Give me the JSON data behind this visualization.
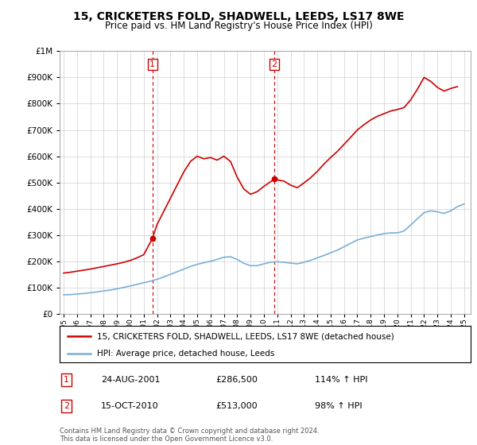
{
  "title": "15, CRICKETERS FOLD, SHADWELL, LEEDS, LS17 8WE",
  "subtitle": "Price paid vs. HM Land Registry's House Price Index (HPI)",
  "legend_line1": "15, CRICKETERS FOLD, SHADWELL, LEEDS, LS17 8WE (detached house)",
  "legend_line2": "HPI: Average price, detached house, Leeds",
  "annotation1_label": "1",
  "annotation1_date": "24-AUG-2001",
  "annotation1_price": "£286,500",
  "annotation1_hpi": "114% ↑ HPI",
  "annotation2_label": "2",
  "annotation2_date": "15-OCT-2010",
  "annotation2_price": "£513,000",
  "annotation2_hpi": "98% ↑ HPI",
  "footnote": "Contains HM Land Registry data © Crown copyright and database right 2024.\nThis data is licensed under the Open Government Licence v3.0.",
  "red_color": "#cc0000",
  "blue_color": "#7bafd4",
  "sale1_year": 2001.65,
  "sale1_price": 286500,
  "sale2_year": 2010.79,
  "sale2_price": 513000,
  "ylim": [
    0,
    1000000
  ],
  "xlim_start": 1994.7,
  "xlim_end": 2025.5,
  "hpi_years": [
    1995,
    1995.5,
    1996,
    1996.5,
    1997,
    1997.5,
    1998,
    1998.5,
    1999,
    1999.5,
    2000,
    2000.5,
    2001,
    2001.5,
    2002,
    2002.5,
    2003,
    2003.5,
    2004,
    2004.5,
    2005,
    2005.5,
    2006,
    2006.5,
    2007,
    2007.5,
    2008,
    2008.5,
    2009,
    2009.5,
    2010,
    2010.5,
    2011,
    2011.5,
    2012,
    2012.5,
    2013,
    2013.5,
    2014,
    2014.5,
    2015,
    2015.5,
    2016,
    2016.5,
    2017,
    2017.5,
    2018,
    2018.5,
    2019,
    2019.5,
    2020,
    2020.5,
    2021,
    2021.5,
    2022,
    2022.5,
    2023,
    2023.5,
    2024,
    2024.5,
    2025
  ],
  "hpi_values": [
    72000,
    73000,
    75000,
    77000,
    80000,
    83000,
    87000,
    90000,
    95000,
    100000,
    106000,
    112000,
    118000,
    124000,
    131000,
    140000,
    150000,
    160000,
    170000,
    180000,
    188000,
    194000,
    200000,
    207000,
    215000,
    217000,
    207000,
    192000,
    183000,
    183000,
    190000,
    196000,
    198000,
    196000,
    193000,
    190000,
    196000,
    203000,
    213000,
    222000,
    232000,
    242000,
    255000,
    268000,
    281000,
    288000,
    294000,
    300000,
    305000,
    308000,
    308000,
    315000,
    338000,
    362000,
    385000,
    392000,
    388000,
    382000,
    392000,
    408000,
    418000
  ],
  "red_years": [
    1995,
    1995.5,
    1996,
    1996.5,
    1997,
    1997.5,
    1998,
    1998.5,
    1999,
    1999.5,
    2000,
    2000.5,
    2001,
    2001.65,
    2002,
    2002.5,
    2003,
    2003.5,
    2004,
    2004.5,
    2005,
    2005.5,
    2006,
    2006.5,
    2007,
    2007.5,
    2008,
    2008.5,
    2009,
    2009.5,
    2010,
    2010.79,
    2011,
    2011.5,
    2012,
    2012.5,
    2013,
    2013.5,
    2014,
    2014.5,
    2015,
    2015.5,
    2016,
    2016.5,
    2017,
    2017.5,
    2018,
    2018.5,
    2019,
    2019.5,
    2020,
    2020.5,
    2021,
    2021.5,
    2022,
    2022.5,
    2023,
    2023.5,
    2024,
    2024.5
  ],
  "red_values": [
    155000,
    158000,
    162000,
    166000,
    170000,
    175000,
    180000,
    185000,
    190000,
    196000,
    203000,
    213000,
    225000,
    286500,
    340000,
    390000,
    440000,
    490000,
    540000,
    580000,
    600000,
    590000,
    595000,
    585000,
    600000,
    580000,
    520000,
    475000,
    455000,
    465000,
    485000,
    513000,
    510000,
    505000,
    490000,
    480000,
    498000,
    518000,
    542000,
    570000,
    595000,
    618000,
    645000,
    672000,
    700000,
    720000,
    738000,
    752000,
    762000,
    772000,
    778000,
    785000,
    815000,
    855000,
    900000,
    885000,
    862000,
    848000,
    858000,
    865000
  ]
}
